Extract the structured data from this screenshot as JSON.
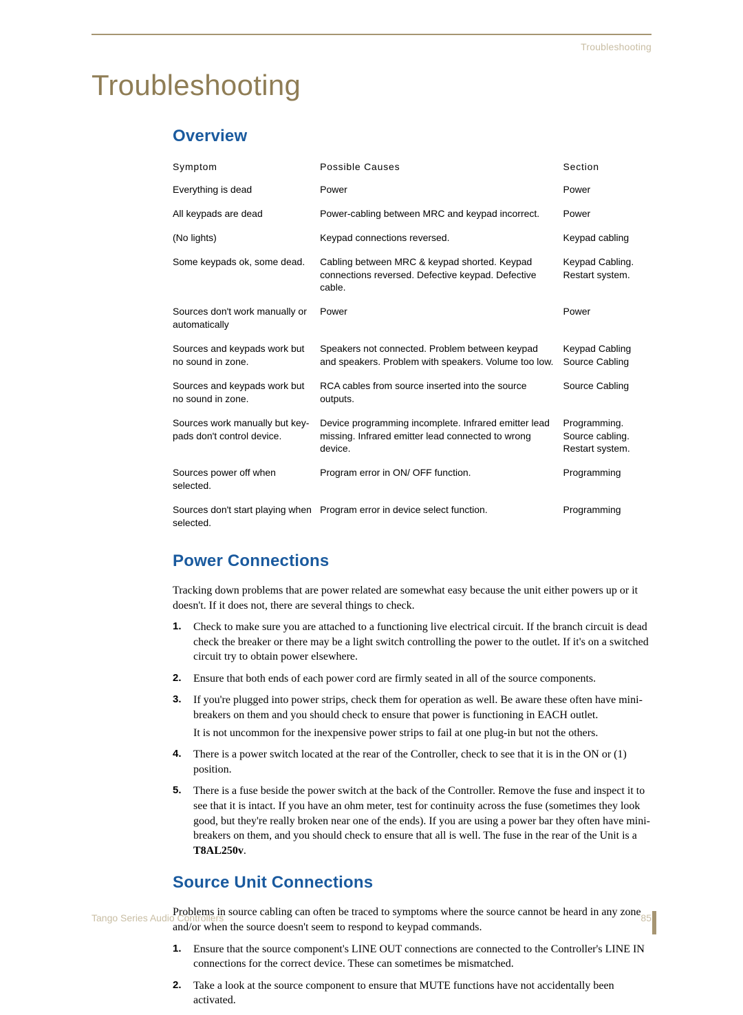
{
  "header": {
    "right": "Troubleshooting"
  },
  "title": "Troubleshooting",
  "overview": {
    "heading": "Overview",
    "columns": [
      "Symptom",
      "Possible Causes",
      "Section"
    ],
    "rows": [
      {
        "symptom": "Everything is dead",
        "cause": "Power",
        "section": "Power"
      },
      {
        "symptom": "All keypads are dead",
        "cause": "Power-cabling between MRC and keypad incorrect.",
        "section": "Power"
      },
      {
        "symptom": "(No lights)",
        "cause": "Keypad connections reversed.",
        "section": "Keypad cabling"
      },
      {
        "symptom": "Some keypads ok, some dead.",
        "cause": "Cabling between MRC & keypad shorted. Keypad connections reversed. Defective keypad. Defective cable.",
        "section": "Keypad Cabling. Restart system."
      },
      {
        "symptom": "Sources don't work manually or automatically",
        "cause": "Power",
        "section": "Power"
      },
      {
        "symptom": "Sources and keypads work but no sound in zone.",
        "cause": "Speakers not connected. Problem between keypad and speakers. Problem with speakers. Volume too low.",
        "section": "Keypad Cabling Source Cabling"
      },
      {
        "symptom": "Sources and keypads work but no sound in zone.",
        "cause": "RCA cables from source inserted into the source outputs.",
        "section": "Source Cabling"
      },
      {
        "symptom": "Sources work manually but key-pads don't control device.",
        "cause": "Device programming incomplete. Infrared emitter lead missing. Infrared emitter lead connected to wrong device.",
        "section": "Programming. Source cabling. Restart system."
      },
      {
        "symptom": "Sources power off when selected.",
        "cause": "Program error in ON/ OFF function.",
        "section": "Programming"
      },
      {
        "symptom": "Sources don't start playing when selected.",
        "cause": "Program error in device select function.",
        "section": "Programming"
      }
    ]
  },
  "power": {
    "heading": "Power Connections",
    "intro": "Tracking down problems that are power related are somewhat easy because the unit either powers up or it doesn't. If it does not, there are several things to check.",
    "items": [
      {
        "text": "Check to make sure you are attached to a functioning live electrical circuit. If the branch circuit is dead check the breaker or there may be a light switch controlling the power to the outlet. If it's on a switched circuit try to obtain power elsewhere."
      },
      {
        "text": "Ensure that both ends of each power cord are firmly seated in all of the source components."
      },
      {
        "text": "If you're plugged into power strips, check them for operation as well. Be aware these often have mini-breakers on them and you should check to ensure that power is functioning in EACH outlet.",
        "sub": "It is not uncommon for the inexpensive power strips to fail at one plug-in but not the others."
      },
      {
        "text": "There is a power switch located at the rear of the Controller, check to see that it is in the ON or (1) position."
      },
      {
        "text_prefix": "There is a fuse beside the power switch at the back of the Controller. Remove the fuse and inspect it to see that it is intact. If you have an ohm meter, test for continuity across the fuse (sometimes they look good, but they're really broken near one of the ends). If you are using a power bar they often have mini-breakers on them, and you should check to ensure that all is well. The fuse in the rear of the Unit is a ",
        "bold": "T8AL250v",
        "text_suffix": "."
      }
    ]
  },
  "source": {
    "heading": "Source Unit Connections",
    "intro": "Problems in source cabling can often be traced to symptoms where the source cannot be heard in any zone and/or when the source doesn't seem to respond to keypad commands.",
    "items": [
      {
        "text": "Ensure that the source component's LINE OUT connections are connected to the Controller's LINE IN connections for the correct device. These can sometimes be mismatched."
      },
      {
        "text": "Take a look at the source component to ensure that MUTE functions have not accidentally been activated."
      }
    ]
  },
  "footer": {
    "left": "Tango Series Audio Controllers",
    "page": "85"
  }
}
